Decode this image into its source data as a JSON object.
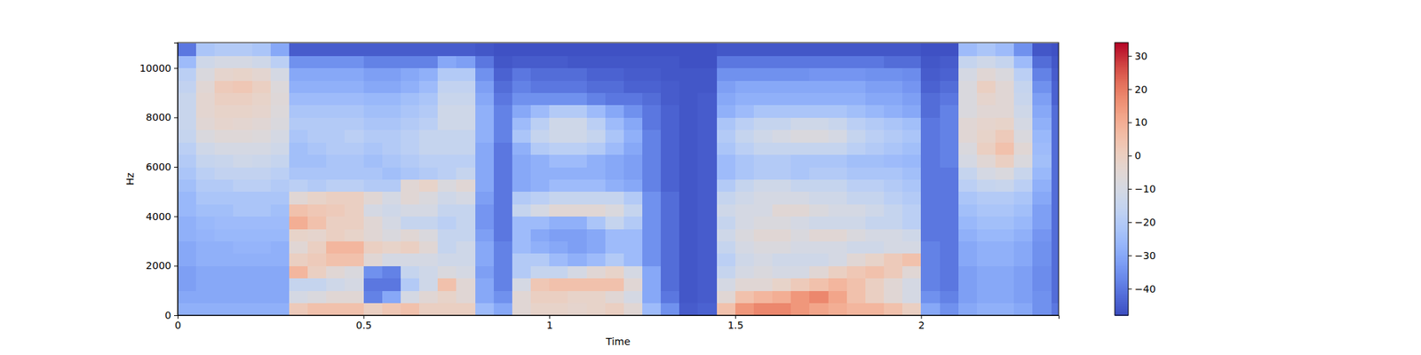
{
  "chart_data": {
    "type": "heatmap",
    "xlabel": "Time",
    "ylabel": "Hz",
    "xlim": [
      0,
      2.37
    ],
    "ylim": [
      0,
      11025
    ],
    "xticks": [
      0,
      0.5,
      1,
      1.5,
      2
    ],
    "yticks": [
      0,
      2000,
      4000,
      6000,
      8000,
      10000
    ],
    "colorbar_lim": [
      -48,
      34
    ],
    "colorbar_ticks": [
      {
        "value": -40,
        "label": "−40"
      },
      {
        "value": -30,
        "label": "−30"
      },
      {
        "value": -20,
        "label": "−20"
      },
      {
        "value": -10,
        "label": "−10"
      },
      0,
      10,
      20,
      30
    ],
    "x": [
      0,
      0.05,
      0.1,
      0.15,
      0.2,
      0.25,
      0.3,
      0.35,
      0.4,
      0.45,
      0.5,
      0.55,
      0.6,
      0.65,
      0.7,
      0.75,
      0.8,
      0.85,
      0.9,
      0.95,
      1.0,
      1.05,
      1.1,
      1.15,
      1.2,
      1.25,
      1.3,
      1.35,
      1.4,
      1.45,
      1.5,
      1.55,
      1.6,
      1.65,
      1.7,
      1.75,
      1.8,
      1.85,
      1.9,
      1.95,
      2.0,
      2.05,
      2.1,
      2.15,
      2.2,
      2.25,
      2.3,
      2.35
    ],
    "y": [
      0,
      500,
      1000,
      1500,
      2000,
      2500,
      3000,
      3500,
      4000,
      4500,
      5000,
      5500,
      6000,
      6500,
      7000,
      7500,
      8000,
      8500,
      9000,
      9500,
      10000,
      10500
    ],
    "cells": [
      [
        -28,
        -30,
        -32,
        -32,
        -30,
        -30,
        -28,
        -28,
        -26,
        -26,
        -24,
        -22,
        -20,
        -18,
        -15,
        -14,
        -14,
        -14,
        -16,
        -18,
        -25,
        -40
      ],
      [
        -28,
        -30,
        -30,
        -30,
        -28,
        -28,
        -27,
        -26,
        -24,
        -22,
        -20,
        -18,
        -15,
        -12,
        -8,
        -5,
        -4,
        -4,
        -5,
        -8,
        -12,
        -22
      ],
      [
        -28,
        -30,
        -30,
        -30,
        -28,
        -28,
        -26,
        -25,
        -24,
        -22,
        -20,
        -16,
        -14,
        -10,
        -6,
        -3,
        -2,
        0,
        2,
        -3,
        -10,
        -20
      ],
      [
        -28,
        -30,
        -30,
        -30,
        -28,
        -27,
        -26,
        -25,
        -22,
        -22,
        -18,
        -16,
        -12,
        -10,
        -6,
        -4,
        -2,
        0,
        3,
        -2,
        -10,
        -20
      ],
      [
        -28,
        -30,
        -30,
        -30,
        -28,
        -27,
        -26,
        -25,
        -22,
        -22,
        -18,
        -16,
        -13,
        -10,
        -7,
        -5,
        -3,
        -2,
        0,
        -4,
        -12,
        -22
      ],
      [
        -28,
        -30,
        -30,
        -30,
        -28,
        -28,
        -26,
        -25,
        -24,
        -22,
        -20,
        -18,
        -15,
        -12,
        -10,
        -8,
        -7,
        -6,
        -7,
        -10,
        -18,
        -30
      ],
      [
        2,
        -10,
        -15,
        8,
        0,
        -5,
        -2,
        10,
        5,
        -5,
        -18,
        -22,
        -24,
        -24,
        -22,
        -20,
        -22,
        -25,
        -28,
        -30,
        -35,
        -45
      ],
      [
        5,
        -8,
        -15,
        0,
        2,
        0,
        -3,
        5,
        3,
        -2,
        -20,
        -22,
        -24,
        -22,
        -20,
        -20,
        -22,
        -25,
        -28,
        -30,
        -35,
        -45
      ],
      [
        5,
        -5,
        -12,
        -5,
        5,
        8,
        0,
        0,
        2,
        0,
        -18,
        -22,
        -22,
        -20,
        -20,
        -20,
        -22,
        -25,
        -28,
        -30,
        -35,
        -45
      ],
      [
        5,
        -5,
        -10,
        -8,
        5,
        8,
        -2,
        0,
        0,
        0,
        -18,
        -22,
        -22,
        -20,
        -18,
        -20,
        -22,
        -25,
        -28,
        -30,
        -35,
        -45
      ],
      [
        0,
        -38,
        -40,
        -35,
        -5,
        0,
        -5,
        -5,
        -10,
        -5,
        -20,
        -22,
        -24,
        -22,
        -20,
        -22,
        -24,
        -26,
        -30,
        -32,
        -38,
        -45
      ],
      [
        3,
        -30,
        -40,
        -38,
        -10,
        -2,
        -8,
        -10,
        -12,
        -10,
        -20,
        -24,
        -22,
        -20,
        -20,
        -22,
        -24,
        -26,
        -30,
        -32,
        -38,
        -45
      ],
      [
        5,
        -10,
        -20,
        -15,
        -10,
        0,
        -5,
        -15,
        -10,
        -5,
        -5,
        -22,
        -20,
        -18,
        -18,
        -20,
        -22,
        -24,
        -28,
        -30,
        -38,
        -45
      ],
      [
        0,
        -5,
        -12,
        -12,
        -10,
        -5,
        -8,
        -15,
        -10,
        -8,
        -2,
        -20,
        -18,
        -15,
        -15,
        -18,
        -20,
        -22,
        -25,
        -28,
        -38,
        -45
      ],
      [
        0,
        -2,
        5,
        -8,
        -12,
        -15,
        -15,
        -18,
        -15,
        -12,
        -8,
        -18,
        -18,
        -15,
        -15,
        -12,
        -12,
        -14,
        -16,
        -20,
        -30,
        -45
      ],
      [
        0,
        -5,
        -5,
        -10,
        -12,
        -12,
        -15,
        -15,
        -15,
        -10,
        -5,
        -15,
        -18,
        -15,
        -15,
        -12,
        -12,
        -14,
        -16,
        -20,
        -32,
        -45
      ],
      [
        -25,
        -30,
        -30,
        -32,
        -30,
        -30,
        -32,
        -34,
        -34,
        -32,
        -30,
        -30,
        -30,
        -30,
        -28,
        -28,
        -28,
        -30,
        -32,
        -35,
        -40,
        -46
      ],
      [
        -30,
        -35,
        -38,
        -38,
        -38,
        -38,
        -40,
        -40,
        -40,
        -40,
        -40,
        -40,
        -40,
        -40,
        -38,
        -38,
        -38,
        -40,
        -42,
        -44,
        -46,
        -47
      ],
      [
        -5,
        -5,
        -10,
        -20,
        -20,
        -25,
        -25,
        -25,
        -15,
        -20,
        -30,
        -30,
        -30,
        -28,
        -22,
        -25,
        -30,
        -35,
        -38,
        -40,
        -45,
        -47
      ],
      [
        -2,
        0,
        3,
        -15,
        -20,
        -28,
        -30,
        -25,
        -10,
        -18,
        -28,
        -28,
        -28,
        -20,
        -15,
        -18,
        -25,
        -35,
        -40,
        -42,
        -45,
        -47
      ],
      [
        -2,
        0,
        5,
        -15,
        -25,
        -30,
        -32,
        -28,
        -5,
        -15,
        -25,
        -28,
        -25,
        -18,
        -12,
        -12,
        -20,
        -35,
        -40,
        -42,
        -45,
        -47
      ],
      [
        -3,
        -2,
        5,
        -10,
        -28,
        -32,
        -32,
        -28,
        -5,
        -15,
        -25,
        -28,
        -25,
        -18,
        -12,
        -12,
        -20,
        -35,
        -40,
        -42,
        -46,
        -47
      ],
      [
        -2,
        -2,
        5,
        -5,
        -25,
        -30,
        -30,
        -22,
        -5,
        -15,
        -25,
        -28,
        -28,
        -20,
        -15,
        -18,
        -25,
        -38,
        -42,
        -44,
        -46,
        -47
      ],
      [
        0,
        -5,
        5,
        -2,
        -20,
        -25,
        -25,
        -15,
        -8,
        -15,
        -28,
        -30,
        -30,
        -25,
        -22,
        -25,
        -30,
        -40,
        -42,
        -44,
        -46,
        -47
      ],
      [
        -5,
        -10,
        -5,
        -10,
        -25,
        -25,
        -25,
        -20,
        -15,
        -20,
        -30,
        -32,
        -32,
        -30,
        -28,
        -30,
        -35,
        -40,
        -44,
        -45,
        -46,
        -47
      ],
      [
        -25,
        -30,
        -30,
        -30,
        -35,
        -35,
        -35,
        -35,
        -35,
        -35,
        -38,
        -38,
        -38,
        -38,
        -38,
        -40,
        -40,
        -42,
        -44,
        -45,
        -46,
        -47
      ],
      [
        -35,
        -40,
        -42,
        -42,
        -42,
        -42,
        -42,
        -42,
        -42,
        -42,
        -44,
        -44,
        -44,
        -44,
        -44,
        -44,
        -44,
        -45,
        -45,
        -46,
        -46,
        -47
      ],
      [
        -45,
        -46,
        -46,
        -46,
        -46,
        -46,
        -46,
        -46,
        -46,
        -46,
        -46,
        -46,
        -46,
        -46,
        -46,
        -46,
        -46,
        -46,
        -46,
        -46,
        -47,
        -47
      ],
      [
        -44,
        -45,
        -45,
        -45,
        -45,
        -45,
        -45,
        -45,
        -45,
        -45,
        -45,
        -45,
        -45,
        -45,
        -45,
        -45,
        -45,
        -45,
        -46,
        -46,
        -47,
        -47
      ],
      [
        5,
        -5,
        -10,
        -15,
        -18,
        -15,
        -12,
        -15,
        -12,
        -15,
        -20,
        -25,
        -25,
        -22,
        -20,
        -22,
        -28,
        -30,
        -32,
        -35,
        -40,
        -46
      ],
      [
        15,
        5,
        -5,
        -10,
        -12,
        -10,
        -8,
        -10,
        -10,
        -12,
        -15,
        -22,
        -22,
        -18,
        -15,
        -18,
        -25,
        -28,
        -30,
        -35,
        -40,
        -46
      ],
      [
        18,
        8,
        -5,
        -8,
        -10,
        -8,
        -5,
        -8,
        -10,
        -10,
        -12,
        -20,
        -20,
        -15,
        -12,
        -15,
        -22,
        -28,
        -30,
        -35,
        -40,
        -46
      ],
      [
        18,
        10,
        -2,
        -10,
        -12,
        -8,
        -5,
        -8,
        -5,
        -10,
        -12,
        -20,
        -20,
        -15,
        -10,
        -15,
        -22,
        -28,
        -30,
        -35,
        -40,
        -46
      ],
      [
        15,
        15,
        2,
        -10,
        -12,
        -10,
        -8,
        -10,
        -5,
        -10,
        -15,
        -22,
        -22,
        -15,
        -8,
        -12,
        -22,
        -28,
        -30,
        -35,
        -40,
        -46
      ],
      [
        12,
        18,
        5,
        -5,
        -12,
        -10,
        -5,
        -12,
        -8,
        -12,
        -15,
        -20,
        -22,
        -15,
        -8,
        -12,
        -22,
        -28,
        -30,
        -34,
        -40,
        -46
      ],
      [
        10,
        12,
        8,
        0,
        -10,
        -10,
        -5,
        -12,
        -10,
        -12,
        -15,
        -20,
        -22,
        -15,
        -10,
        -14,
        -22,
        -28,
        -30,
        -34,
        -40,
        -46
      ],
      [
        8,
        5,
        5,
        3,
        -5,
        -12,
        -8,
        -12,
        -10,
        -15,
        -18,
        -22,
        -24,
        -18,
        -15,
        -18,
        -24,
        -28,
        -30,
        -34,
        -40,
        -46
      ],
      [
        8,
        0,
        0,
        5,
        -2,
        -12,
        -10,
        -15,
        -12,
        -15,
        -18,
        -22,
        -24,
        -20,
        -18,
        -20,
        -26,
        -30,
        -32,
        -35,
        -40,
        -46
      ],
      [
        5,
        -5,
        -5,
        2,
        2,
        -10,
        -10,
        -15,
        -15,
        -18,
        -20,
        -22,
        -25,
        -22,
        -20,
        -22,
        -28,
        -30,
        -32,
        -35,
        -42,
        -46
      ],
      [
        0,
        -10,
        -10,
        -5,
        5,
        -10,
        -12,
        -18,
        -18,
        -20,
        -22,
        -24,
        -26,
        -24,
        -22,
        -24,
        -30,
        -32,
        -34,
        -36,
        -42,
        -46
      ],
      [
        -30,
        -35,
        -38,
        -38,
        -38,
        -38,
        -40,
        -40,
        -40,
        -40,
        -40,
        -40,
        -40,
        -40,
        -40,
        -40,
        -42,
        -42,
        -44,
        -45,
        -46,
        -47
      ],
      [
        -35,
        -38,
        -40,
        -40,
        -40,
        -40,
        -40,
        -40,
        -40,
        -40,
        -40,
        -40,
        -38,
        -38,
        -38,
        -38,
        -38,
        -40,
        -42,
        -44,
        -45,
        -47
      ],
      [
        -30,
        -32,
        -32,
        -32,
        -30,
        -30,
        -28,
        -26,
        -24,
        -22,
        -18,
        -15,
        -10,
        -8,
        -5,
        -5,
        -8,
        -8,
        -8,
        -10,
        -15,
        -25
      ],
      [
        -28,
        -30,
        -30,
        -30,
        -28,
        -28,
        -26,
        -24,
        -22,
        -20,
        -15,
        -10,
        -5,
        0,
        -2,
        -3,
        -5,
        -3,
        0,
        -5,
        -12,
        -22
      ],
      [
        -28,
        -30,
        -30,
        -30,
        -28,
        -28,
        -26,
        -24,
        -22,
        -20,
        -14,
        -8,
        0,
        5,
        2,
        -2,
        -5,
        -5,
        -5,
        -8,
        -15,
        -25
      ],
      [
        -30,
        -32,
        -32,
        -32,
        -30,
        -30,
        -28,
        -26,
        -24,
        -22,
        -18,
        -14,
        -8,
        -5,
        -8,
        -10,
        -12,
        -14,
        -15,
        -18,
        -25,
        -35
      ],
      [
        -35,
        -35,
        -36,
        -36,
        -35,
        -35,
        -34,
        -32,
        -32,
        -30,
        -28,
        -26,
        -24,
        -25,
        -26,
        -28,
        -30,
        -32,
        -35,
        -38,
        -42,
        -46
      ],
      [
        -40,
        -42,
        -42,
        -42,
        -42,
        -42,
        -42,
        -42,
        -42,
        -42,
        -42,
        -42,
        -42,
        -42,
        -42,
        -42,
        -42,
        -44,
        -44,
        -45,
        -46,
        -47
      ]
    ]
  }
}
